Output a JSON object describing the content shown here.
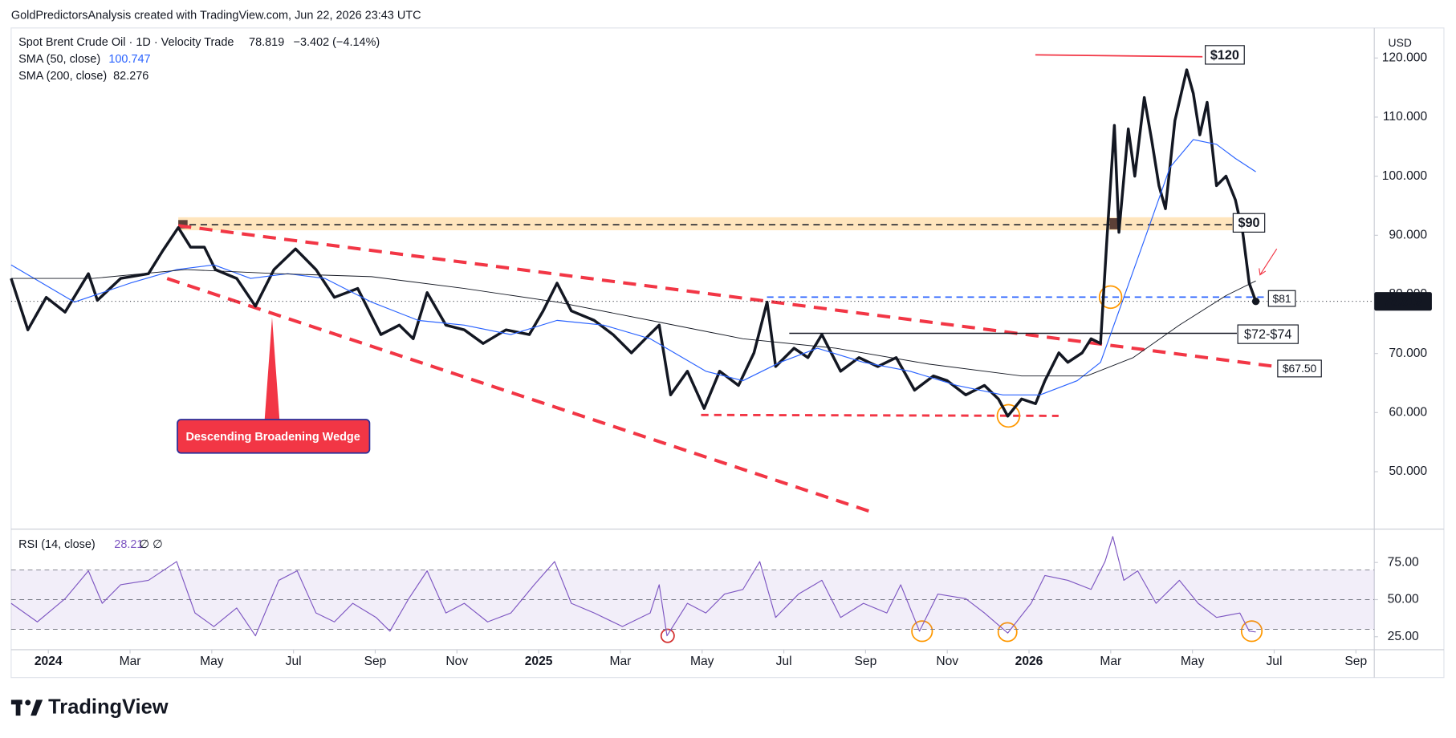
{
  "header": "GoldPredictorsAnalysis created with TradingView.com, Jun 22, 2026 23:43 UTC",
  "footer": "TradingView",
  "currency": "USD",
  "chart_data": [
    {
      "type": "line",
      "xlim": [
        -0.91,
        32.45
      ],
      "ylim": [
        40.6,
        124.3
      ],
      "yticks": [
        {
          "value": 50,
          "label": "50.000"
        },
        {
          "value": 60,
          "label": "60.000"
        },
        {
          "value": 70,
          "label": "70.000"
        },
        {
          "value": 80,
          "label": "80.000"
        },
        {
          "value": 90,
          "label": "90.000"
        },
        {
          "value": 100,
          "label": "100.000"
        },
        {
          "value": 110,
          "label": "110.000"
        },
        {
          "value": 120,
          "label": "120.000"
        }
      ],
      "series": [
        {
          "name": "Spot Brent Crude Oil · 1D · Velocity Trade",
          "color": "#131722",
          "last": 78.819,
          "change": "−3.402 (−4.14%)",
          "x": [
            -0.91,
            -0.5,
            -0.05,
            0.41,
            0.98,
            1.2,
            1.77,
            2.45,
            2.8,
            3.18,
            3.48,
            3.82,
            4.09,
            4.61,
            5.07,
            5.52,
            6.05,
            6.55,
            7,
            7.57,
            8.14,
            8.59,
            8.93,
            9.27,
            9.73,
            10.18,
            10.64,
            11.2,
            11.77,
            12.11,
            12.45,
            12.8,
            13.36,
            13.82,
            14.27,
            14.61,
            14.95,
            15.23,
            15.64,
            16.05,
            16.43,
            16.89,
            17.27,
            17.59,
            17.8,
            18.25,
            18.59,
            18.93,
            19.39,
            19.84,
            20.3,
            20.75,
            21.2,
            21.66,
            22,
            22.45,
            22.91,
            23.25,
            23.48,
            23.82,
            24.16,
            24.39,
            24.73,
            24.95,
            25.3,
            25.52,
            25.75,
            25.91,
            26.09,
            26.2,
            26.43,
            26.59,
            26.82,
            27,
            27.18,
            27.34,
            27.57,
            27.86,
            28.02,
            28.18,
            28.36,
            28.59,
            28.82,
            29.05,
            29.23,
            29.39,
            29.55
          ],
          "values": [
            82.7,
            74,
            79.5,
            77,
            83.5,
            79,
            82.7,
            83.5,
            87.4,
            91.3,
            88,
            88,
            84.2,
            82.7,
            78,
            84.2,
            87.7,
            84.2,
            79.5,
            81,
            73.2,
            74.8,
            72.5,
            80.3,
            74.8,
            74,
            71.7,
            74,
            73.2,
            77.2,
            81.9,
            77.2,
            75.6,
            73.2,
            70.1,
            72.5,
            74.8,
            63,
            67,
            60.7,
            67,
            64.6,
            70.1,
            78.7,
            67.8,
            70.9,
            69.3,
            73.2,
            67,
            69.3,
            67.8,
            69.3,
            63.8,
            66.2,
            65.4,
            63,
            64.6,
            62.3,
            59.4,
            62.3,
            61.5,
            65.4,
            70.1,
            68.5,
            70.1,
            72.5,
            71.7,
            89.7,
            108.6,
            90.5,
            108,
            100,
            113.3,
            106.2,
            98.4,
            94.5,
            109.4,
            118,
            114,
            107,
            112.5,
            98.4,
            100,
            96,
            90.5,
            81.9,
            78.819
          ]
        },
        {
          "name": "SMA (50, close)",
          "color": "#2962ff",
          "last": 100.747,
          "x": [
            -0.91,
            0.64,
            2,
            3.14,
            4.05,
            4.95,
            5.86,
            6.77,
            7.91,
            9.05,
            10.18,
            11.32,
            12.45,
            13.59,
            14.73,
            16.09,
            17,
            17.91,
            18.82,
            19.95,
            21.09,
            22.23,
            23.36,
            24.27,
            25.18,
            25.75,
            26.32,
            26.89,
            27.45,
            28.02,
            28.59,
            29.05,
            29.55
          ],
          "values": [
            85,
            78.7,
            81.9,
            84.2,
            85,
            82.7,
            83.5,
            82.7,
            78.7,
            75.6,
            74.8,
            73.2,
            75.6,
            74.8,
            72.5,
            67,
            65.4,
            68.5,
            70.9,
            68.5,
            67,
            64.6,
            63,
            63,
            65.4,
            68.5,
            79.5,
            90.5,
            101.5,
            106.2,
            105.4,
            103,
            100.747
          ]
        },
        {
          "name": "SMA (200, close)",
          "color": "#131722",
          "last": 82.276,
          "x": [
            -0.91,
            1.09,
            3.36,
            5.64,
            7.91,
            10.18,
            12.45,
            14.73,
            17,
            19.27,
            21.55,
            23.82,
            25.41,
            26.55,
            27.68,
            28.82,
            29.55
          ],
          "values": [
            82.7,
            82.7,
            84.2,
            83.5,
            83,
            81,
            78.7,
            75.6,
            72.5,
            70.9,
            68.2,
            66.2,
            66.2,
            69.3,
            74.8,
            79.8,
            82.276
          ]
        }
      ],
      "annotations": [
        "$120",
        "$90",
        "$81",
        "$72-$74",
        "$67.50",
        "Descending Broadening Wedge"
      ]
    },
    {
      "type": "line",
      "title": "RSI (14, close)",
      "flags": "∅ ∅",
      "xlim": [
        -0.91,
        32.45
      ],
      "ylim": [
        16.25,
        96.25
      ],
      "yticks": [
        {
          "value": 25,
          "label": "25.00"
        },
        {
          "value": 50,
          "label": "50.00"
        },
        {
          "value": 75,
          "label": "75.00"
        }
      ],
      "levels": [
        30,
        50,
        70
      ],
      "xticks": [
        {
          "value": 0,
          "label": "2024"
        },
        {
          "value": 2,
          "label": "Mar"
        },
        {
          "value": 4,
          "label": "May"
        },
        {
          "value": 6,
          "label": "Jul"
        },
        {
          "value": 8,
          "label": "Sep"
        },
        {
          "value": 10,
          "label": "Nov"
        },
        {
          "value": 12,
          "label": "2025"
        },
        {
          "value": 14,
          "label": "Mar"
        },
        {
          "value": 16,
          "label": "May"
        },
        {
          "value": 18,
          "label": "Jul"
        },
        {
          "value": 20,
          "label": "Sep"
        },
        {
          "value": 22,
          "label": "Nov"
        },
        {
          "value": 24,
          "label": "2026"
        },
        {
          "value": 26,
          "label": "Mar"
        },
        {
          "value": 28,
          "label": "May"
        },
        {
          "value": 30,
          "label": "Jul"
        },
        {
          "value": 32,
          "label": "Sep"
        }
      ],
      "series": [
        {
          "name": "RSI (14, close)",
          "color": "#7e57c2",
          "last": 28.21,
          "x": [
            -0.91,
            -0.27,
            0.41,
            0.98,
            1.32,
            1.77,
            2.45,
            3.14,
            3.59,
            4.05,
            4.61,
            5.07,
            5.64,
            6.09,
            6.55,
            7,
            7.45,
            8.02,
            8.36,
            8.82,
            9.27,
            9.73,
            10.18,
            10.75,
            11.32,
            11.89,
            12.39,
            12.8,
            13.36,
            14.05,
            14.73,
            14.95,
            15.14,
            15.64,
            16.09,
            16.55,
            17,
            17.41,
            17.8,
            18.36,
            18.93,
            19.39,
            19.95,
            20.52,
            20.86,
            21.32,
            21.77,
            22.45,
            22.91,
            23.48,
            24.05,
            24.39,
            24.95,
            25.52,
            25.86,
            26.05,
            26.32,
            26.66,
            27.11,
            27.68,
            28.14,
            28.59,
            29.16,
            29.39,
            29.55
          ],
          "values": [
            47.5,
            35,
            50.6,
            69.4,
            47.5,
            60,
            63,
            75.6,
            41,
            31.9,
            44.4,
            25.6,
            63,
            69.4,
            41,
            35,
            47.5,
            38,
            28.75,
            50.6,
            69.4,
            41,
            47.5,
            35,
            41,
            60,
            75.6,
            47.5,
            41,
            31.9,
            41,
            60,
            25.6,
            47.5,
            41,
            53.75,
            56.9,
            75.6,
            38,
            53.75,
            63,
            38,
            47.5,
            41,
            60,
            28.75,
            53.75,
            50.6,
            41,
            27.5,
            47.5,
            66.25,
            63,
            56.9,
            75.6,
            92.5,
            63,
            69.4,
            47.5,
            63,
            47.5,
            38,
            41,
            28.75,
            28.21
          ]
        }
      ]
    }
  ]
}
